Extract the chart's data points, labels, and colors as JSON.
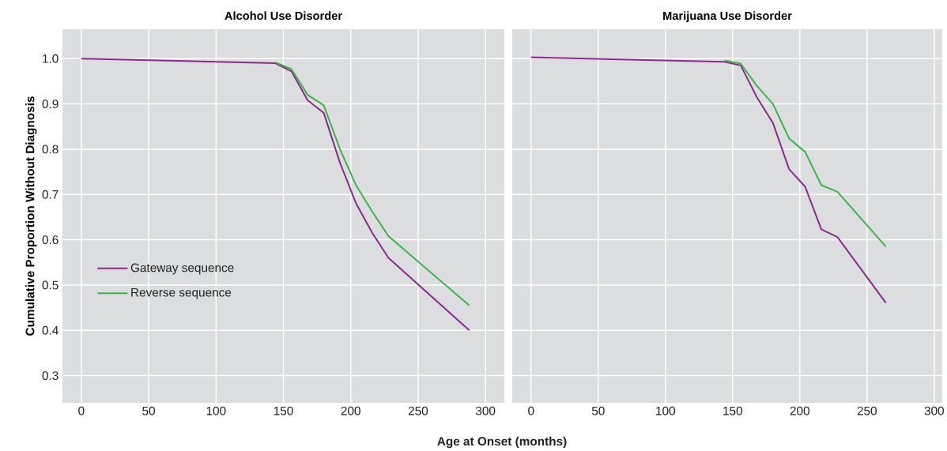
{
  "chart_data": [
    {
      "type": "line",
      "title": "Alcohol Use Disorder",
      "xlabel": "Age at Onset (months)",
      "ylabel": "Cumulative Proportion Without Diagnosis",
      "xlim": [
        -14,
        314
      ],
      "ylim": [
        0.24,
        1.065
      ],
      "xticks": [
        0,
        50,
        100,
        150,
        200,
        250,
        300
      ],
      "yticks": [
        0.3,
        0.4,
        0.5,
        0.6,
        0.7,
        0.8,
        0.9,
        {
          "value": 1,
          "label": "1.0"
        }
      ],
      "grid": true,
      "legend": "bottom left",
      "line_style": "solid",
      "marker": "none",
      "series": [
        {
          "name": "Gateway sequence",
          "color": "#8b2a8e",
          "x": [
            0,
            144,
            156,
            168,
            180,
            192,
            204,
            216,
            228,
            288
          ],
          "values": [
            1.0,
            0.99,
            0.972,
            0.908,
            0.88,
            0.77,
            0.68,
            0.615,
            0.56,
            0.4
          ]
        },
        {
          "name": "Reverse sequence",
          "color": "#3cb44a",
          "x": [
            144,
            156,
            168,
            180,
            192,
            204,
            216,
            228,
            288
          ],
          "values": [
            0.992,
            0.977,
            0.92,
            0.897,
            0.8,
            0.72,
            0.662,
            0.608,
            0.455
          ]
        }
      ]
    },
    {
      "type": "line",
      "title": "Marijuana Use Disorder",
      "xlim": [
        -14,
        306
      ],
      "ylim": [
        0.24,
        1.065
      ],
      "xticks": [
        0,
        50,
        100,
        150,
        200,
        250,
        300
      ],
      "tick_labels": "x",
      "grid": true,
      "line_style": "solid",
      "marker": "none",
      "yticks": [
        0.3,
        0.4,
        0.5,
        0.6,
        0.7,
        0.8,
        0.9,
        1
      ],
      "series": [
        {
          "color": "#8b2a8e",
          "x": [
            0,
            144,
            156,
            168,
            180,
            192,
            204,
            216,
            228,
            264
          ],
          "values": [
            1.003,
            0.993,
            0.985,
            0.915,
            0.858,
            0.756,
            0.717,
            0.623,
            0.606,
            0.461
          ]
        },
        {
          "color": "#3cb44a",
          "x": [
            144,
            156,
            168,
            180,
            192,
            204,
            216,
            228,
            264
          ],
          "values": [
            0.996,
            0.989,
            0.94,
            0.9,
            0.824,
            0.794,
            0.721,
            0.706,
            0.585
          ]
        }
      ]
    }
  ]
}
